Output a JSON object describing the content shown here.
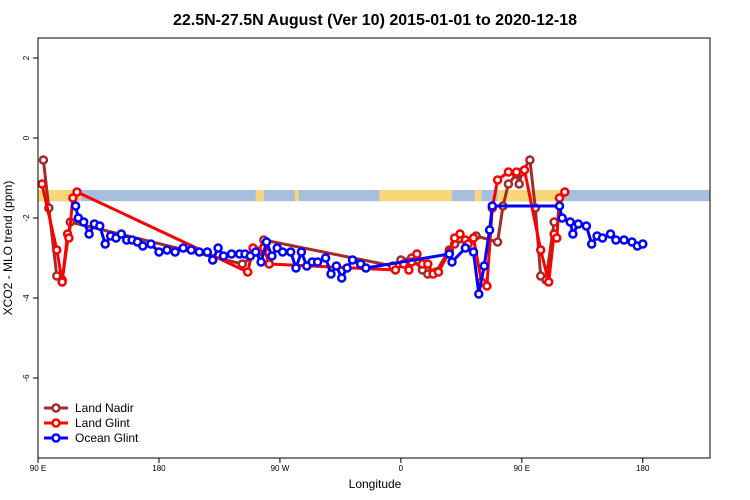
{
  "chart_data": {
    "type": "line",
    "title": "22.5N-27.5N August (Ver 10)   2015-01-01 to 2020-12-18",
    "xlabel": "Longitude",
    "ylabel": "XCO2 - MLO trend (ppm)",
    "xlim": [
      90,
      590
    ],
    "ylim": [
      -8,
      2.5
    ],
    "x_ticks": [
      {
        "value": 90,
        "label": "90 E"
      },
      {
        "value": 180,
        "label": "180"
      },
      {
        "value": 270,
        "label": "90 W"
      },
      {
        "value": 360,
        "label": "0"
      },
      {
        "value": 450,
        "label": "90 E"
      },
      {
        "value": 540,
        "label": "180"
      }
    ],
    "y_ticks": [
      {
        "value": 2,
        "label": "2"
      },
      {
        "value": 0,
        "label": "0"
      },
      {
        "value": -2,
        "label": "-2"
      },
      {
        "value": -4,
        "label": "-4"
      },
      {
        "value": -6,
        "label": "-6"
      }
    ],
    "land_sea_strip": {
      "y_top": -1.3,
      "y_bottom": -1.58,
      "ocean_color": "#a7bfdf",
      "land_color": "#f8d77a",
      "land_ranges": [
        [
          90,
          122
        ],
        [
          252,
          258
        ],
        [
          281,
          284
        ],
        [
          344,
          398
        ],
        [
          415,
          420
        ],
        [
          432,
          480
        ]
      ]
    },
    "series": [
      {
        "name": "Land Nadir",
        "color": "#a52a2a",
        "points": [
          [
            94,
            -0.55
          ],
          [
            98,
            -1.75
          ],
          [
            104,
            -3.45
          ],
          [
            108,
            -3.55
          ],
          [
            114,
            -2.1
          ],
          [
            242,
            -3.15
          ],
          [
            254,
            -2.85
          ],
          [
            258,
            -2.55
          ],
          [
            354,
            -3.2
          ],
          [
            360,
            -3.05
          ],
          [
            368,
            -3.0
          ],
          [
            376,
            -3.3
          ],
          [
            380,
            -3.4
          ],
          [
            386,
            -3.35
          ],
          [
            396,
            -2.8
          ],
          [
            400,
            -2.65
          ],
          [
            416,
            -2.45
          ],
          [
            432,
            -2.6
          ],
          [
            436,
            -1.7
          ],
          [
            440,
            -1.15
          ],
          [
            446,
            -0.9
          ],
          [
            448,
            -1.15
          ],
          [
            450,
            -0.85
          ],
          [
            456,
            -0.55
          ],
          [
            460,
            -1.75
          ],
          [
            464,
            -3.45
          ],
          [
            468,
            -3.55
          ],
          [
            474,
            -2.1
          ]
        ]
      },
      {
        "name": "Land Glint",
        "color": "#ff0000",
        "points": [
          [
            93,
            -1.15
          ],
          [
            104,
            -2.8
          ],
          [
            108,
            -3.6
          ],
          [
            112,
            -2.4
          ],
          [
            113,
            -2.5
          ],
          [
            116,
            -1.5
          ],
          [
            119,
            -1.35
          ],
          [
            246,
            -3.35
          ],
          [
            250,
            -2.75
          ],
          [
            258,
            -2.75
          ],
          [
            262,
            -3.15
          ],
          [
            356,
            -3.3
          ],
          [
            362,
            -3.15
          ],
          [
            366,
            -3.3
          ],
          [
            368,
            -3.1
          ],
          [
            372,
            -2.9
          ],
          [
            376,
            -3.15
          ],
          [
            380,
            -3.15
          ],
          [
            384,
            -3.4
          ],
          [
            388,
            -3.35
          ],
          [
            396,
            -2.85
          ],
          [
            400,
            -2.5
          ],
          [
            404,
            -2.4
          ],
          [
            408,
            -2.55
          ],
          [
            410,
            -2.65
          ],
          [
            414,
            -2.5
          ],
          [
            420,
            -3.6
          ],
          [
            424,
            -3.7
          ],
          [
            428,
            -1.75
          ],
          [
            432,
            -1.05
          ],
          [
            440,
            -0.85
          ],
          [
            446,
            -0.85
          ],
          [
            452,
            -0.8
          ],
          [
            464,
            -2.8
          ],
          [
            470,
            -3.6
          ],
          [
            474,
            -2.4
          ],
          [
            476,
            -2.5
          ],
          [
            478,
            -1.5
          ],
          [
            482,
            -1.35
          ]
        ]
      },
      {
        "name": "Ocean Glint",
        "color": "#0000ff",
        "points": [
          [
            118,
            -1.7
          ],
          [
            120,
            -2.0
          ],
          [
            124,
            -2.1
          ],
          [
            128,
            -2.4
          ],
          [
            132,
            -2.15
          ],
          [
            136,
            -2.2
          ],
          [
            140,
            -2.65
          ],
          [
            144,
            -2.45
          ],
          [
            148,
            -2.5
          ],
          [
            152,
            -2.4
          ],
          [
            156,
            -2.55
          ],
          [
            160,
            -2.55
          ],
          [
            164,
            -2.6
          ],
          [
            168,
            -2.7
          ],
          [
            174,
            -2.65
          ],
          [
            180,
            -2.85
          ],
          [
            186,
            -2.8
          ],
          [
            192,
            -2.85
          ],
          [
            198,
            -2.75
          ],
          [
            204,
            -2.8
          ],
          [
            210,
            -2.85
          ],
          [
            216,
            -2.85
          ],
          [
            220,
            -3.05
          ],
          [
            224,
            -2.75
          ],
          [
            228,
            -2.95
          ],
          [
            234,
            -2.9
          ],
          [
            240,
            -2.9
          ],
          [
            244,
            -2.9
          ],
          [
            248,
            -2.95
          ],
          [
            252,
            -2.85
          ],
          [
            256,
            -3.1
          ],
          [
            260,
            -2.6
          ],
          [
            264,
            -2.95
          ],
          [
            268,
            -2.75
          ],
          [
            272,
            -2.85
          ],
          [
            278,
            -2.85
          ],
          [
            282,
            -3.25
          ],
          [
            286,
            -2.85
          ],
          [
            290,
            -3.2
          ],
          [
            294,
            -3.1
          ],
          [
            298,
            -3.1
          ],
          [
            304,
            -3.0
          ],
          [
            308,
            -3.4
          ],
          [
            312,
            -3.2
          ],
          [
            316,
            -3.5
          ],
          [
            320,
            -3.25
          ],
          [
            324,
            -3.05
          ],
          [
            330,
            -3.15
          ],
          [
            334,
            -3.25
          ],
          [
            396,
            -2.9
          ],
          [
            398,
            -3.1
          ],
          [
            408,
            -2.75
          ],
          [
            414,
            -2.85
          ],
          [
            418,
            -3.9
          ],
          [
            422,
            -3.2
          ],
          [
            426,
            -2.3
          ],
          [
            428,
            -1.7
          ],
          [
            478,
            -1.7
          ],
          [
            480,
            -2.0
          ],
          [
            486,
            -2.1
          ],
          [
            488,
            -2.4
          ],
          [
            492,
            -2.15
          ],
          [
            498,
            -2.2
          ],
          [
            502,
            -2.65
          ],
          [
            506,
            -2.45
          ],
          [
            510,
            -2.5
          ],
          [
            516,
            -2.4
          ],
          [
            520,
            -2.55
          ],
          [
            526,
            -2.55
          ],
          [
            532,
            -2.6
          ],
          [
            536,
            -2.7
          ],
          [
            540,
            -2.65
          ]
        ]
      }
    ],
    "legend": {
      "position": "bottom-left",
      "entries": [
        "Land Nadir",
        "Land Glint",
        "Ocean Glint"
      ]
    }
  }
}
